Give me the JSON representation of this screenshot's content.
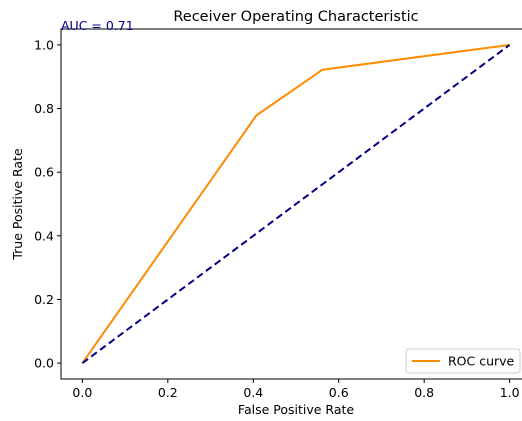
{
  "chart_data": {
    "type": "line",
    "title": "Receiver Operating Characteristic",
    "annotation": "AUC = 0.71",
    "xlabel": "False Positive Rate",
    "ylabel": "True Positive Rate",
    "xlim": [
      -0.05,
      1.05
    ],
    "ylim": [
      -0.05,
      1.05
    ],
    "xticks": [
      0.0,
      0.2,
      0.4,
      0.6,
      0.8,
      1.0
    ],
    "yticks": [
      0.0,
      0.2,
      0.4,
      0.6,
      0.8,
      1.0
    ],
    "xtick_labels": [
      "0.0",
      "0.2",
      "0.4",
      "0.6",
      "0.8",
      "1.0"
    ],
    "ytick_labels": [
      "0.0",
      "0.2",
      "0.4",
      "0.6",
      "0.8",
      "1.0"
    ],
    "grid": false,
    "legend_position": "bottom-right",
    "series": [
      {
        "name": "ROC curve",
        "color": "#ff8c00",
        "style": "solid",
        "x": [
          0.0,
          0.407,
          0.562,
          1.0
        ],
        "y": [
          0.0,
          0.778,
          0.922,
          1.0
        ]
      },
      {
        "color": "#000080",
        "style": "dashed",
        "x": [
          0.0,
          1.0
        ],
        "y": [
          0.0,
          1.0
        ]
      }
    ],
    "colors": {
      "annotation": "#00008b",
      "axes": "#000000"
    }
  }
}
